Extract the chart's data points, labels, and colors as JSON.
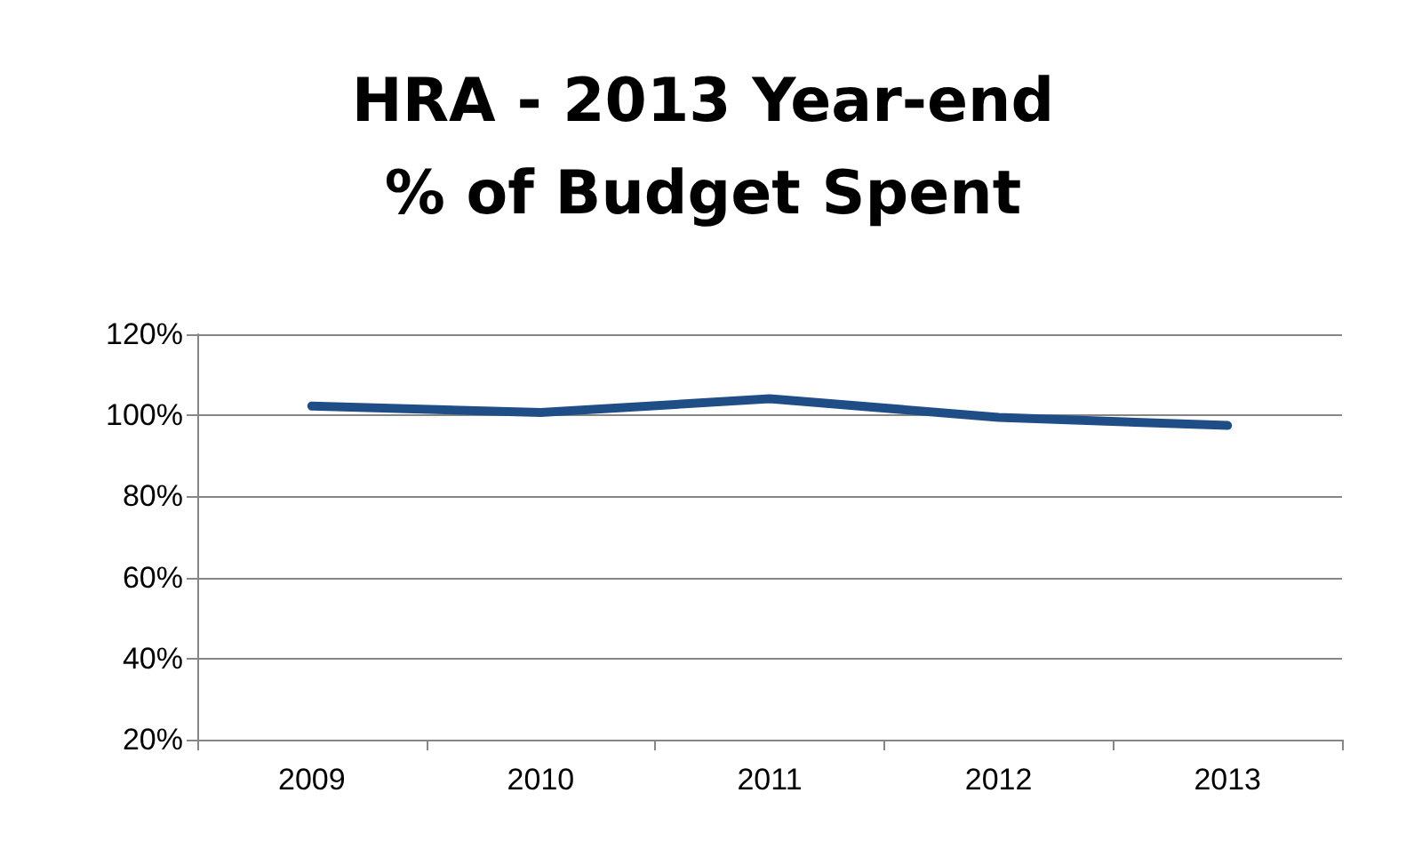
{
  "chart_data": {
    "type": "line",
    "title": "HRA - 2013 Year-end\n% of Budget Spent",
    "categories": [
      "2009",
      "2010",
      "2011",
      "2012",
      "2013"
    ],
    "series": [
      {
        "color": "#1f4e87",
        "values": [
          102.3,
          100.7,
          104.1,
          99.5,
          97.5
        ]
      }
    ],
    "ylim": [
      20,
      120
    ],
    "yticks": [
      {
        "value": 20,
        "label": "20%"
      },
      {
        "value": 40,
        "label": "40%"
      },
      {
        "value": 60,
        "label": "60%"
      },
      {
        "value": 80,
        "label": "80%"
      },
      {
        "value": 100,
        "label": "100%"
      },
      {
        "value": 120,
        "label": "120%"
      }
    ],
    "grid": "y",
    "marker": "none",
    "line_style": "solid"
  }
}
